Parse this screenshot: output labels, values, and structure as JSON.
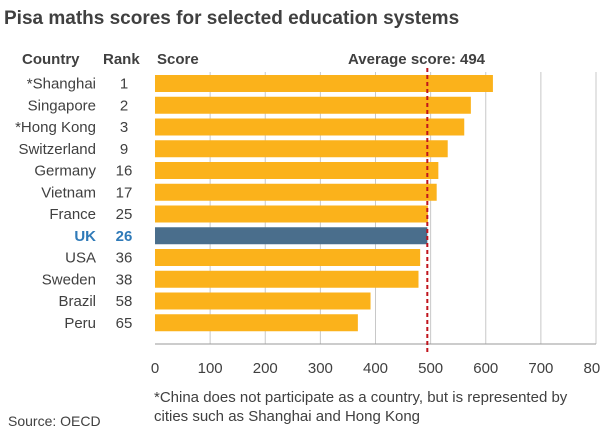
{
  "chart_data": {
    "type": "bar",
    "orientation": "horizontal",
    "title": "Pisa maths scores for selected education systems",
    "column_headers": {
      "country": "Country",
      "rank": "Rank",
      "score": "Score"
    },
    "categories": [
      "*Shanghai",
      "Singapore",
      "*Hong Kong",
      "Switzerland",
      "Germany",
      "Vietnam",
      "France",
      "UK",
      "USA",
      "Sweden",
      "Brazil",
      "Peru"
    ],
    "ranks": [
      "1",
      "2",
      "3",
      "9",
      "16",
      "17",
      "25",
      "26",
      "36",
      "38",
      "58",
      "65"
    ],
    "values": [
      613,
      573,
      561,
      531,
      514,
      511,
      495,
      494,
      481,
      478,
      391,
      368
    ],
    "highlight": "UK",
    "reference_line": {
      "value": 494,
      "label": "Average score: 494"
    },
    "xlim": [
      0,
      800
    ],
    "xticks": [
      0,
      100,
      200,
      300,
      400,
      500,
      600,
      700,
      800
    ],
    "grid": true,
    "colors": {
      "bar": "#fbb21b",
      "highlight_bar": "#4a6e8c",
      "highlight_text": "#2f7ab8",
      "reference_line": "#c0141c",
      "grid": "#c8c8c8",
      "text": "#404040"
    }
  },
  "footnote": "*China does not participate as a country, but is represented by cities such as Shanghai and Hong Kong",
  "source": "Source: OECD"
}
